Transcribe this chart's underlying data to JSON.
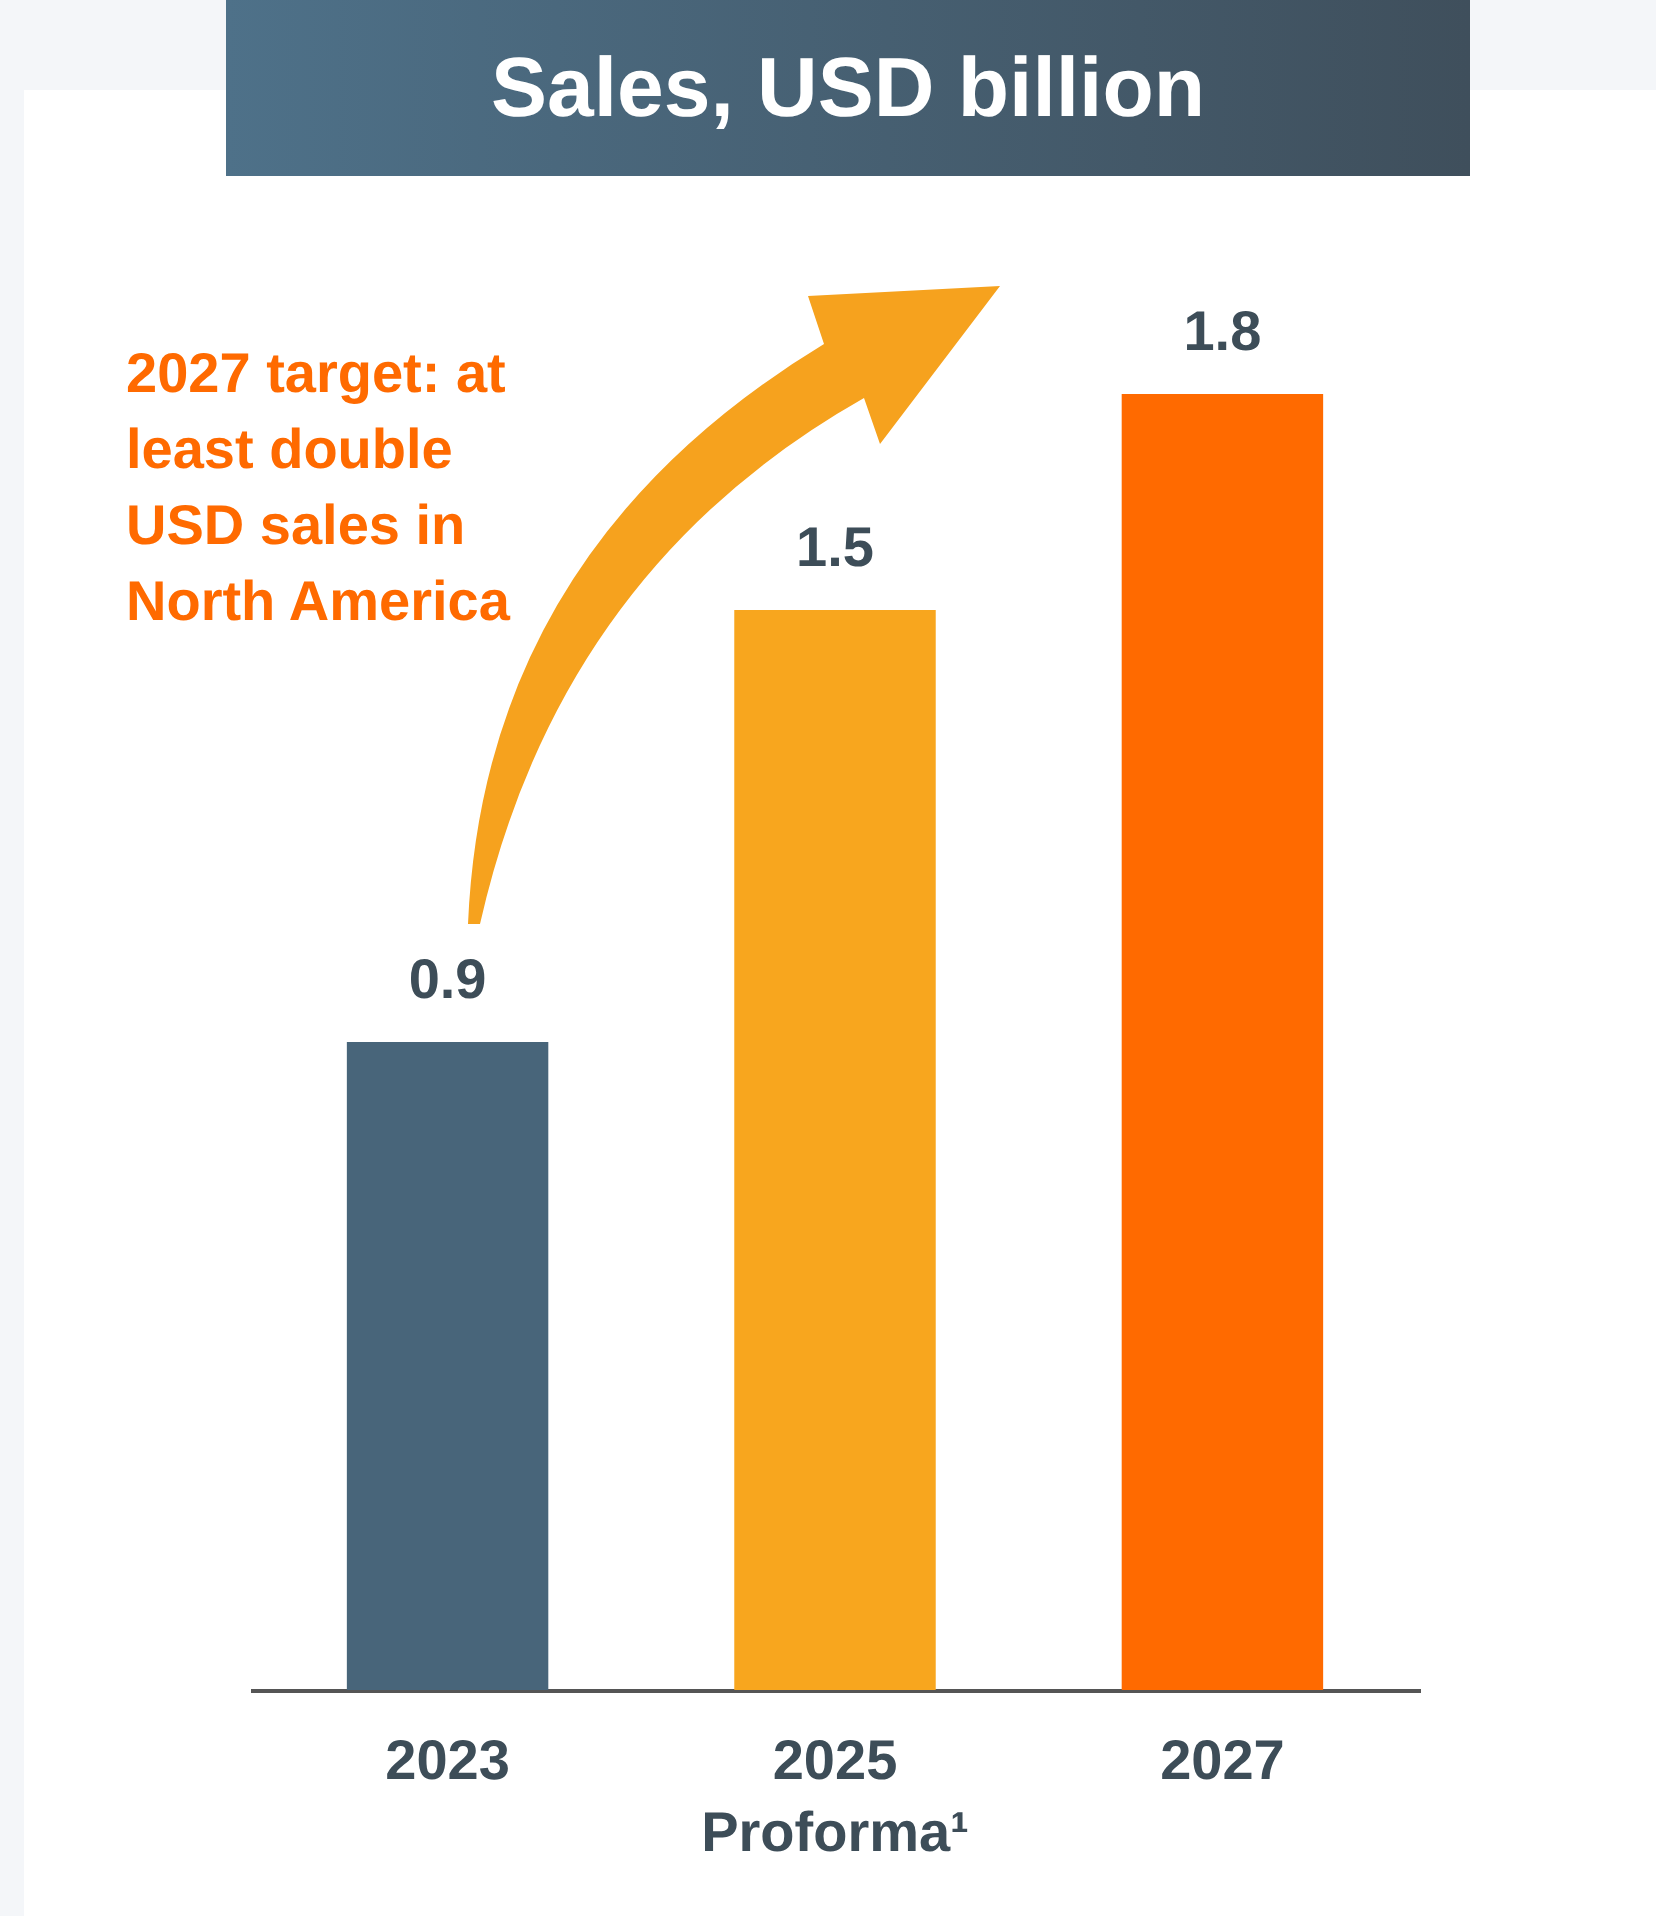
{
  "chart_data": {
    "type": "bar",
    "title": "Sales, USD billion",
    "categories": [
      "2023",
      "2025 Proforma¹",
      "2027"
    ],
    "values": [
      0.9,
      1.5,
      1.8
    ],
    "colors": [
      "#48657a",
      "#f8a61e",
      "#ff6a00"
    ],
    "data_labels": true,
    "annotations": [
      "2027 target: at least double USD sales in North America"
    ]
  }
}
